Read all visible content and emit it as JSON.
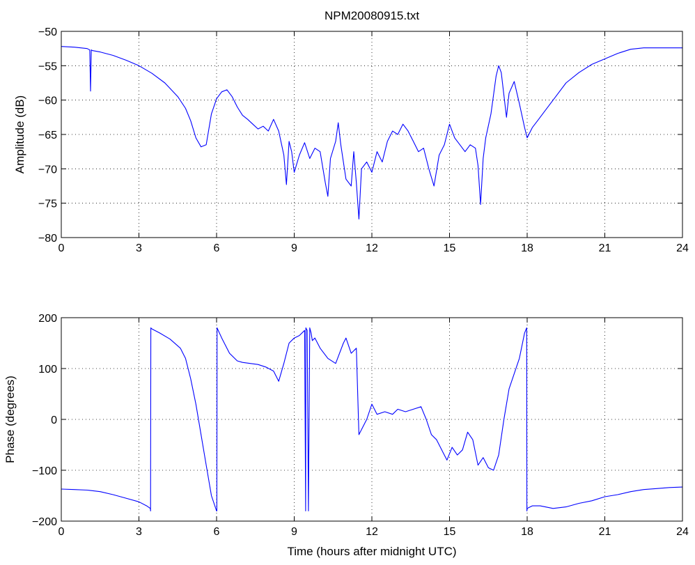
{
  "chart_data": [
    {
      "type": "line",
      "title": "NPM20080915.txt",
      "xlabel": "",
      "ylabel": "Amplitude (dB)",
      "xlim": [
        0,
        24
      ],
      "ylim": [
        -80,
        -50
      ],
      "xticks": [
        "0",
        "3",
        "6",
        "9",
        "12",
        "15",
        "18",
        "21",
        "24"
      ],
      "yticks": [
        "-80",
        "-75",
        "-70",
        "-65",
        "-60",
        "-55",
        "-50"
      ],
      "grid": true,
      "line_color": "#0000ff",
      "series": [
        {
          "x": [
            0,
            0.5,
            1.0,
            1.05,
            1.1,
            1.13,
            1.16,
            1.2,
            1.5,
            2,
            2.5,
            3,
            3.5,
            4,
            4.5,
            4.8,
            5.0,
            5.2,
            5.4,
            5.6,
            5.8,
            6.0,
            6.2,
            6.4,
            6.6,
            6.8,
            7.0,
            7.2,
            7.4,
            7.6,
            7.8,
            8.0,
            8.2,
            8.4,
            8.6,
            8.7,
            8.8,
            8.9,
            9.0,
            9.2,
            9.4,
            9.6,
            9.8,
            10.0,
            10.2,
            10.3,
            10.4,
            10.6,
            10.7,
            10.8,
            11.0,
            11.2,
            11.3,
            11.4,
            11.5,
            11.6,
            11.8,
            12.0,
            12.2,
            12.4,
            12.6,
            12.8,
            13.0,
            13.2,
            13.4,
            13.6,
            13.8,
            14.0,
            14.2,
            14.4,
            14.6,
            14.8,
            15.0,
            15.2,
            15.4,
            15.6,
            15.8,
            16.0,
            16.1,
            16.2,
            16.3,
            16.4,
            16.6,
            16.8,
            16.9,
            17.0,
            17.2,
            17.3,
            17.5,
            17.7,
            17.9,
            18.0,
            18.2,
            18.4,
            18.6,
            19.0,
            19.5,
            20.0,
            20.5,
            21.0,
            21.5,
            22.0,
            22.5,
            23.0,
            24.0
          ],
          "y": [
            -52.2,
            -52.3,
            -52.5,
            -52.6,
            -52.7,
            -58.7,
            -52.7,
            -52.8,
            -53.0,
            -53.5,
            -54.2,
            -55.0,
            -56.1,
            -57.5,
            -59.5,
            -61.2,
            -63.0,
            -65.5,
            -66.8,
            -66.5,
            -62.0,
            -59.8,
            -58.8,
            -58.5,
            -59.5,
            -61.0,
            -62.2,
            -62.8,
            -63.5,
            -64.2,
            -63.8,
            -64.5,
            -62.8,
            -64.5,
            -68.0,
            -72.3,
            -66.0,
            -67.5,
            -70.5,
            -68.0,
            -66.2,
            -68.5,
            -67.0,
            -67.5,
            -72.0,
            -74.0,
            -68.5,
            -66.0,
            -63.3,
            -66.5,
            -71.5,
            -72.5,
            -67.5,
            -72.0,
            -77.3,
            -70.0,
            -69.0,
            -70.5,
            -67.5,
            -69.0,
            -66.0,
            -64.5,
            -65.0,
            -63.5,
            -64.5,
            -66.0,
            -67.5,
            -67.0,
            -70.0,
            -72.5,
            -68.0,
            -66.5,
            -63.5,
            -65.5,
            -66.5,
            -67.5,
            -66.5,
            -67.0,
            -69.5,
            -75.2,
            -68.5,
            -65.5,
            -62.0,
            -56.5,
            -55.0,
            -56.0,
            -62.5,
            -59.0,
            -57.3,
            -60.5,
            -64.0,
            -65.5,
            -64.0,
            -63.0,
            -62.0,
            -60.0,
            -57.5,
            -56.0,
            -54.8,
            -54.0,
            -53.2,
            -52.6,
            -52.4,
            -52.4,
            -52.4
          ]
        }
      ]
    },
    {
      "type": "line",
      "title": "",
      "xlabel": "Time (hours after midnight UTC)",
      "ylabel": "Phase (degrees)",
      "xlim": [
        0,
        24
      ],
      "ylim": [
        -200,
        200
      ],
      "xticks": [
        "0",
        "3",
        "6",
        "9",
        "12",
        "15",
        "18",
        "21",
        "24"
      ],
      "yticks": [
        "-200",
        "-100",
        "0",
        "100",
        "200"
      ],
      "grid": true,
      "line_color": "#0000ff",
      "series": [
        {
          "x": [
            0,
            0.5,
            1.0,
            1.5,
            2.0,
            2.5,
            3.0,
            3.3,
            3.44,
            3.45,
            3.46,
            3.5,
            3.8,
            4.2,
            4.6,
            4.8,
            5.0,
            5.2,
            5.4,
            5.6,
            5.8,
            6.0,
            6.01,
            6.02,
            6.2,
            6.5,
            6.8,
            7.0,
            7.3,
            7.6,
            7.9,
            8.2,
            8.4,
            8.6,
            8.8,
            9.0,
            9.2,
            9.4,
            9.44,
            9.45,
            9.5,
            9.55,
            9.6,
            9.65,
            9.7,
            9.8,
            10.0,
            10.3,
            10.6,
            10.9,
            11.0,
            11.2,
            11.4,
            11.5,
            11.6,
            11.8,
            12.0,
            12.2,
            12.5,
            12.8,
            13.0,
            13.3,
            13.6,
            13.9,
            14.1,
            14.3,
            14.5,
            14.7,
            14.9,
            15.1,
            15.3,
            15.5,
            15.7,
            15.9,
            16.1,
            16.3,
            16.5,
            16.7,
            16.9,
            17.1,
            17.3,
            17.5,
            17.7,
            17.9,
            17.98,
            17.99,
            18.0,
            18.2,
            18.5,
            19.0,
            19.5,
            20.0,
            20.5,
            21.0,
            21.5,
            22.0,
            22.5,
            23.0,
            23.5,
            24.0
          ],
          "y": [
            -137,
            -138,
            -139,
            -142,
            -148,
            -155,
            -162,
            -170,
            -175,
            -180,
            180,
            178,
            170,
            158,
            140,
            120,
            80,
            30,
            -30,
            -90,
            -150,
            -180,
            -180,
            180,
            160,
            130,
            115,
            112,
            110,
            108,
            103,
            95,
            75,
            110,
            150,
            160,
            165,
            175,
            -180,
            180,
            175,
            -180,
            180,
            170,
            155,
            160,
            140,
            120,
            110,
            150,
            160,
            130,
            140,
            -30,
            -20,
            0,
            30,
            10,
            15,
            10,
            20,
            15,
            20,
            25,
            0,
            -30,
            -40,
            -60,
            -80,
            -55,
            -70,
            -60,
            -25,
            -40,
            -90,
            -75,
            -95,
            -100,
            -70,
            0,
            60,
            90,
            120,
            170,
            180,
            -180,
            -175,
            -170,
            -170,
            -175,
            -172,
            -165,
            -160,
            -152,
            -148,
            -142,
            -138,
            -136,
            -134,
            -133
          ]
        }
      ]
    }
  ]
}
